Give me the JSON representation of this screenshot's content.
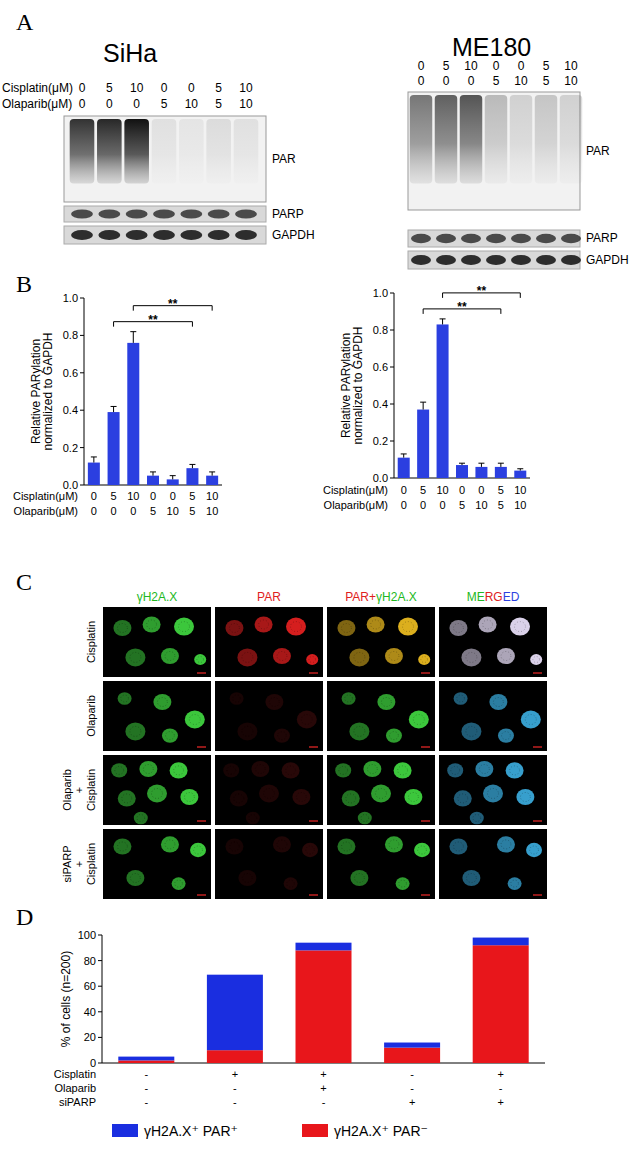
{
  "panel_labels": [
    "A",
    "B",
    "C",
    "D"
  ],
  "blots": [
    {
      "title": "SiHa",
      "row_labels": [
        "Cisplatin(μM)",
        "Olaparib(μM)"
      ],
      "rows": [
        [
          "0",
          "5",
          "10",
          "0",
          "0",
          "5",
          "10"
        ],
        [
          "0",
          "0",
          "0",
          "5",
          "10",
          "5",
          "10"
        ]
      ],
      "bands": [
        "PAR",
        "PARP",
        "GAPDH"
      ]
    },
    {
      "title": "ME180",
      "rows": [
        [
          "0",
          "5",
          "10",
          "0",
          "0",
          "5",
          "10"
        ],
        [
          "0",
          "0",
          "0",
          "5",
          "10",
          "5",
          "10"
        ]
      ],
      "bands": [
        "PAR",
        "PARP",
        "GAPDH"
      ]
    }
  ],
  "chart_data": [
    {
      "type": "bar",
      "y_label": [
        "Relative PARylation",
        "normalized to GAPDH"
      ],
      "ylim": [
        0,
        1.0
      ],
      "yticks": [
        {
          "value": 0,
          "label": "0.0"
        },
        {
          "value": 0.2,
          "label": "0.2"
        },
        {
          "value": 0.4,
          "label": "0.4"
        },
        {
          "value": 0.6,
          "label": "0.6"
        },
        {
          "value": 0.8,
          "label": "0.8"
        },
        {
          "value": 1.0,
          "label": "1.0"
        }
      ],
      "category_rows": [
        {
          "label": "Cisplatin(μM)",
          "values": [
            "0",
            "5",
            "10",
            "0",
            "0",
            "5",
            "10"
          ]
        },
        {
          "label": "Olaparib(μM)",
          "values": [
            "0",
            "0",
            "0",
            "5",
            "10",
            "5",
            "10"
          ]
        }
      ],
      "values": [
        0.12,
        0.39,
        0.76,
        0.05,
        0.03,
        0.09,
        0.05
      ],
      "errors": [
        0.03,
        0.03,
        0.06,
        0.02,
        0.02,
        0.02,
        0.02
      ],
      "color": "#2b3fe0",
      "annotations": [
        {
          "from": 1,
          "to": 5,
          "text": "**"
        },
        {
          "from": 2,
          "to": 6,
          "text": "**"
        }
      ]
    },
    {
      "type": "bar",
      "y_label": [
        "Relative PARylation",
        "normalized to GAPDH"
      ],
      "ylim": [
        0,
        1.0
      ],
      "yticks": [
        {
          "value": 0,
          "label": "0.0"
        },
        {
          "value": 0.2,
          "label": "0.2"
        },
        {
          "value": 0.4,
          "label": "0.4"
        },
        {
          "value": 0.6,
          "label": "0.6"
        },
        {
          "value": 0.8,
          "label": "0.8"
        },
        {
          "value": 1.0,
          "label": "1.0"
        }
      ],
      "category_rows": [
        {
          "label": "Cisplatin(μM)",
          "values": [
            "0",
            "5",
            "10",
            "0",
            "0",
            "5",
            "10"
          ]
        },
        {
          "label": "Olaparib(μM)",
          "values": [
            "0",
            "0",
            "0",
            "5",
            "10",
            "5",
            "10"
          ]
        }
      ],
      "values": [
        0.11,
        0.37,
        0.83,
        0.07,
        0.06,
        0.06,
        0.04
      ],
      "errors": [
        0.02,
        0.04,
        0.03,
        0.01,
        0.02,
        0.02,
        0.01
      ],
      "color": "#2b3fe0",
      "annotations": [
        {
          "from": 1,
          "to": 5,
          "text": "**"
        },
        {
          "from": 2,
          "to": 6,
          "text": "**"
        }
      ]
    },
    {
      "type": "bar",
      "stacked": true,
      "y_label": "% of cells (n=200)",
      "ylim": [
        0,
        100
      ],
      "yticks": [
        0,
        20,
        40,
        60,
        80,
        100
      ],
      "category_rows": [
        {
          "label": "Cisplatin",
          "values": [
            "-",
            "+",
            "+",
            "-",
            "+"
          ]
        },
        {
          "label": "Olaparib",
          "values": [
            "-",
            "-",
            "+",
            "-",
            "-"
          ]
        },
        {
          "label": "siPARP",
          "values": [
            "-",
            "-",
            "-",
            "+",
            "+"
          ]
        }
      ],
      "series": [
        {
          "name": "γH2A.X⁺ PAR⁻",
          "color": "#e8161b",
          "values": [
            2,
            10,
            88,
            12,
            92
          ]
        },
        {
          "name": "γH2A.X⁺ PAR⁺",
          "color": "#1a2ee0",
          "values": [
            3,
            59,
            6,
            4,
            6
          ]
        }
      ],
      "legend": "bottom"
    }
  ],
  "microscopy": {
    "columns": [
      [
        {
          "text": "γH2A.X",
          "color": "#22b822"
        }
      ],
      [
        {
          "text": "PAR",
          "color": "#e0201c"
        }
      ],
      [
        {
          "text": "PAR+",
          "color": "#e0201c"
        },
        {
          "text": "γH2A.X",
          "color": "#22b822"
        }
      ],
      [
        {
          "text": "ME",
          "color": "#22b822"
        },
        {
          "text": "RG",
          "color": "#e0201c"
        },
        {
          "text": "ED",
          "color": "#2b3fe0"
        }
      ]
    ],
    "rows": [
      [
        "Cisplatin"
      ],
      [
        "Olaparib"
      ],
      [
        "Olaparib",
        "+",
        "Cisplatin"
      ],
      [
        "siPARP",
        "+",
        "Cisplatin"
      ]
    ]
  }
}
